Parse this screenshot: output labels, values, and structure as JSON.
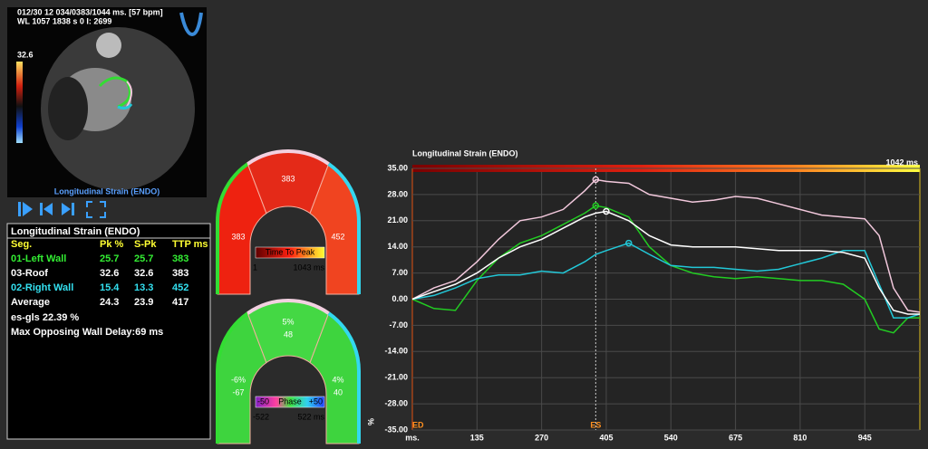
{
  "image": {
    "info_line1": "012/30 12 034/0383/1044 ms. [57 bpm]",
    "info_line2": "WL 1057 1838 s 0 I: 2699",
    "scale_max": "32.6",
    "caption": "Longitudinal Strain (ENDO)"
  },
  "table": {
    "title": "Longitudinal Strain (ENDO)",
    "header": [
      "Seg.",
      "Pk %",
      "S-Pk",
      "TTP ms"
    ],
    "header_color": "#ffff33",
    "rows": [
      {
        "cells": [
          "01-Left Wall",
          "25.7",
          "25.7",
          "383"
        ],
        "color": "#33ee33"
      },
      {
        "cells": [
          "03-Roof",
          "32.6",
          "32.6",
          "383"
        ],
        "color": "#ffffff"
      },
      {
        "cells": [
          "02-Right Wall",
          "15.4",
          "13.3",
          "452"
        ],
        "color": "#33e0f0"
      },
      {
        "cells": [
          "Average",
          "24.3",
          "23.9",
          "417"
        ],
        "color": "#ffffff"
      }
    ],
    "notes": [
      "es-gls 22.39 %",
      "Max Opposing Wall Delay:69 ms"
    ]
  },
  "gauges": [
    {
      "legend_title": "Time To Peak",
      "legend_min": "1",
      "legend_max": "1043 ms",
      "segments": [
        {
          "lines": [
            "383"
          ],
          "fill": "#ee2210"
        },
        {
          "lines": [
            "383"
          ],
          "fill": "#e42a18"
        },
        {
          "lines": [
            "452"
          ],
          "fill": "#f04420"
        }
      ]
    },
    {
      "legend_title": "Phase",
      "legend_left": "-50",
      "legend_right": "+50",
      "legend_min": "-522",
      "legend_max": "522 ms",
      "segments": [
        {
          "lines": [
            "-6%",
            "-67"
          ],
          "fill": "#3ed43e"
        },
        {
          "lines": [
            "5%",
            "48"
          ],
          "fill": "#44d844"
        },
        {
          "lines": [
            "4%",
            "40"
          ],
          "fill": "#3ed43e"
        }
      ]
    }
  ],
  "chart_data": {
    "type": "line",
    "title": "Longitudinal Strain (ENDO)",
    "top_bar_label": "1042 ms",
    "x_unit": "ms.",
    "ylabel": "%",
    "x": [
      0,
      45,
      90,
      135,
      180,
      225,
      270,
      315,
      360,
      383,
      405,
      452,
      495,
      540,
      585,
      630,
      675,
      720,
      765,
      810,
      855,
      900,
      945,
      975,
      1005,
      1035,
      1060
    ],
    "xlim": [
      0,
      1060
    ],
    "xticks": [
      135,
      270,
      405,
      540,
      675,
      810,
      945
    ],
    "ylim": [
      -35,
      35
    ],
    "yticks": [
      {
        "value": 35,
        "label": "35.00"
      },
      {
        "value": 28,
        "label": "28.00"
      },
      {
        "value": 21,
        "label": "21.00"
      },
      {
        "value": 14,
        "label": "14.00"
      },
      {
        "value": 7,
        "label": "7.00"
      },
      {
        "value": 0,
        "label": "0.00"
      },
      {
        "value": -7,
        "label": "-7.00"
      },
      {
        "value": -14,
        "label": "-14.00"
      },
      {
        "value": -21,
        "label": "-21.00"
      },
      {
        "value": -28,
        "label": "-28.00"
      },
      {
        "value": -35,
        "label": "-35.00"
      }
    ],
    "grid": true,
    "markers": [
      {
        "label": "ED",
        "x": 0
      },
      {
        "label": "ES",
        "x": 383
      }
    ],
    "series": [
      {
        "color": "#f2c8dc",
        "values": [
          0,
          3,
          5,
          10,
          16,
          21,
          22,
          24,
          29,
          32,
          31.5,
          31,
          28,
          27,
          26,
          26.5,
          27.5,
          27,
          25.5,
          24,
          22.5,
          22,
          21.5,
          17,
          3,
          -3,
          -3.5
        ]
      },
      {
        "color": "#22cc22",
        "values": [
          0,
          -2.5,
          -3,
          5,
          11,
          15,
          17,
          20,
          23,
          25,
          24.5,
          22,
          14,
          9,
          7,
          6,
          5.5,
          6,
          5.5,
          5,
          5,
          4,
          0,
          -8,
          -9,
          -5,
          -5
        ]
      },
      {
        "color": "#22c8d8",
        "values": [
          0,
          1,
          3,
          5.5,
          6.5,
          6.5,
          7.5,
          7,
          10,
          12,
          13,
          15,
          12,
          9,
          8.5,
          8.5,
          8,
          7.5,
          8,
          9.5,
          11,
          13,
          13,
          4,
          -5,
          -5,
          -4
        ]
      },
      {
        "color": "#ffffff",
        "values": [
          0,
          2,
          4,
          7,
          11,
          14,
          16,
          19,
          22,
          23,
          23.5,
          21,
          17,
          14.5,
          14,
          14,
          14,
          13.5,
          13,
          13,
          13,
          12.5,
          11,
          3,
          -3,
          -4,
          -4
        ]
      }
    ]
  }
}
